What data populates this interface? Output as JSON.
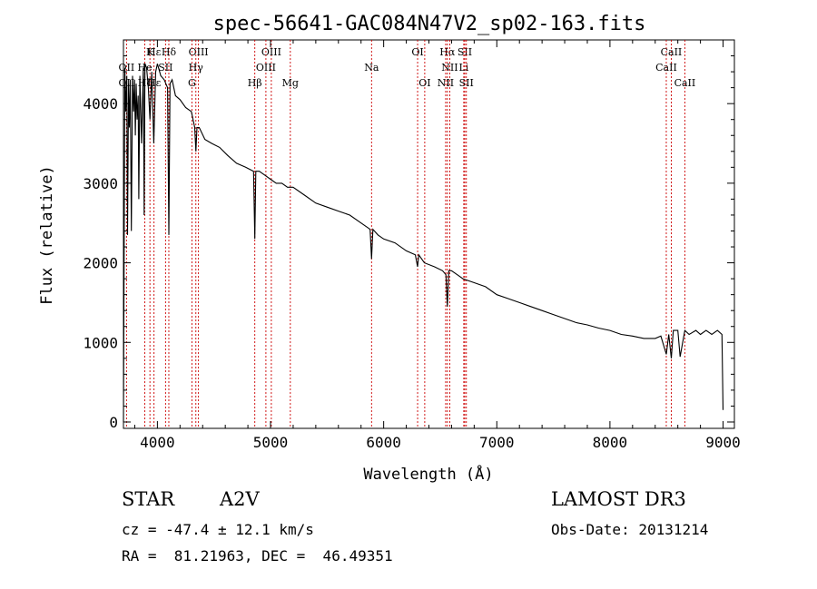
{
  "chart_data": {
    "type": "line",
    "title": "spec-56641-GAC084N47V2_sp02-163.fits",
    "xlabel": "Wavelength (Å)",
    "ylabel": "Flux (relative)",
    "xlim": [
      3700,
      9100
    ],
    "ylim": [
      -80,
      4800
    ],
    "xticks": [
      4000,
      5000,
      6000,
      7000,
      8000,
      9000
    ],
    "xtick_labels": [
      "4000",
      "5000",
      "6000",
      "7000",
      "8000",
      "9000"
    ],
    "yticks": [
      0,
      1000,
      2000,
      3000,
      4000
    ],
    "ytick_labels": [
      "0",
      "1000",
      "2000",
      "3000",
      "4000"
    ],
    "grid": false,
    "series": [
      {
        "name": "spectrum",
        "x": [
          3700,
          3712,
          3720,
          3730,
          3736,
          3745,
          3752,
          3760,
          3770,
          3780,
          3790,
          3798,
          3805,
          3812,
          3820,
          3830,
          3836,
          3845,
          3860,
          3876,
          3883,
          3890,
          3905,
          3920,
          3934,
          3950,
          3968,
          3985,
          4000,
          4030,
          4060,
          4090,
          4101,
          4112,
          4130,
          4160,
          4200,
          4250,
          4300,
          4330,
          4340,
          4350,
          4370,
          4420,
          4480,
          4550,
          4620,
          4700,
          4780,
          4850,
          4861,
          4870,
          4900,
          4950,
          5000,
          5050,
          5100,
          5150,
          5200,
          5300,
          5400,
          5500,
          5600,
          5700,
          5800,
          5850,
          5880,
          5893,
          5905,
          5950,
          6000,
          6100,
          6200,
          6280,
          6300,
          6310,
          6360,
          6450,
          6520,
          6550,
          6563,
          6576,
          6600,
          6650,
          6700,
          6800,
          6900,
          7000,
          7100,
          7200,
          7300,
          7400,
          7500,
          7600,
          7700,
          7800,
          7900,
          8000,
          8100,
          8200,
          8300,
          8400,
          8450,
          8498,
          8520,
          8542,
          8560,
          8600,
          8620,
          8662,
          8700,
          8760,
          8800,
          8850,
          8900,
          8950,
          8990,
          9000
        ],
        "y": [
          0,
          4450,
          3900,
          4350,
          2350,
          4250,
          3700,
          4300,
          2400,
          4350,
          3900,
          4300,
          3600,
          4250,
          3800,
          4100,
          2800,
          4350,
          3500,
          4450,
          2600,
          4500,
          4450,
          4200,
          3800,
          4400,
          3500,
          4400,
          4500,
          4350,
          4300,
          4200,
          2350,
          4250,
          4300,
          4100,
          4050,
          3950,
          3900,
          3700,
          3400,
          3700,
          3700,
          3550,
          3500,
          3450,
          3350,
          3250,
          3200,
          3150,
          2300,
          3150,
          3150,
          3100,
          3050,
          3000,
          3000,
          2950,
          2950,
          2850,
          2750,
          2700,
          2650,
          2600,
          2500,
          2450,
          2420,
          2050,
          2420,
          2350,
          2300,
          2250,
          2150,
          2100,
          1950,
          2100,
          2000,
          1950,
          1900,
          1850,
          1450,
          1900,
          1900,
          1850,
          1800,
          1750,
          1700,
          1600,
          1550,
          1500,
          1450,
          1400,
          1350,
          1300,
          1250,
          1220,
          1180,
          1150,
          1100,
          1080,
          1050,
          1050,
          1080,
          850,
          1100,
          800,
          1150,
          1150,
          820,
          1150,
          1100,
          1150,
          1100,
          1150,
          1100,
          1150,
          1100,
          150
        ]
      }
    ],
    "line_markers": [
      {
        "label": "Hε",
        "x": 3970,
        "row": 1
      },
      {
        "label": "K",
        "x": 3934,
        "row": 1
      },
      {
        "label": "Hδ",
        "x": 4101,
        "row": 1
      },
      {
        "label": "OIII",
        "x": 4363,
        "row": 1
      },
      {
        "label": "OIII",
        "x": 5007,
        "row": 1
      },
      {
        "label": "OI",
        "x": 6300,
        "row": 1
      },
      {
        "label": "Hα",
        "x": 6563,
        "row": 1
      },
      {
        "label": "SII",
        "x": 6717,
        "row": 1
      },
      {
        "label": "CaII",
        "x": 8542,
        "row": 1
      },
      {
        "label": "OII",
        "x": 3727,
        "row": 2
      },
      {
        "label": "He",
        "x": 3889,
        "row": 2
      },
      {
        "label": "SII",
        "x": 4072,
        "row": 2
      },
      {
        "label": "Hγ",
        "x": 4340,
        "row": 2
      },
      {
        "label": "OIII",
        "x": 4959,
        "row": 2
      },
      {
        "label": "Na",
        "x": 5893,
        "row": 2
      },
      {
        "label": "NII",
        "x": 6584,
        "row": 2
      },
      {
        "label": "Li",
        "x": 6708,
        "row": 2
      },
      {
        "label": "CaII",
        "x": 8498,
        "row": 2
      },
      {
        "label": "OII",
        "x": 3727,
        "row": 3
      },
      {
        "label": "Hζ",
        "x": 3889,
        "row": 3
      },
      {
        "label": "Hε",
        "x": 3970,
        "row": 3
      },
      {
        "label": "G",
        "x": 4305,
        "row": 3
      },
      {
        "label": "Hβ",
        "x": 4861,
        "row": 3
      },
      {
        "label": "Mg",
        "x": 5175,
        "row": 3
      },
      {
        "label": "OI",
        "x": 6363,
        "row": 3
      },
      {
        "label": "NII",
        "x": 6548,
        "row": 3
      },
      {
        "label": "SII",
        "x": 6731,
        "row": 3
      },
      {
        "label": "CaII",
        "x": 8662,
        "row": 3
      }
    ]
  },
  "info": {
    "object_type": "STAR",
    "spectral_class": "A2V",
    "survey": "LAMOST DR3",
    "redshift_text": "cz = -47.4 ± 12.1 km/s",
    "obs_date_text": "Obs-Date: 20131214",
    "coords_text": "RA =  81.21963, DEC =  46.49351"
  }
}
